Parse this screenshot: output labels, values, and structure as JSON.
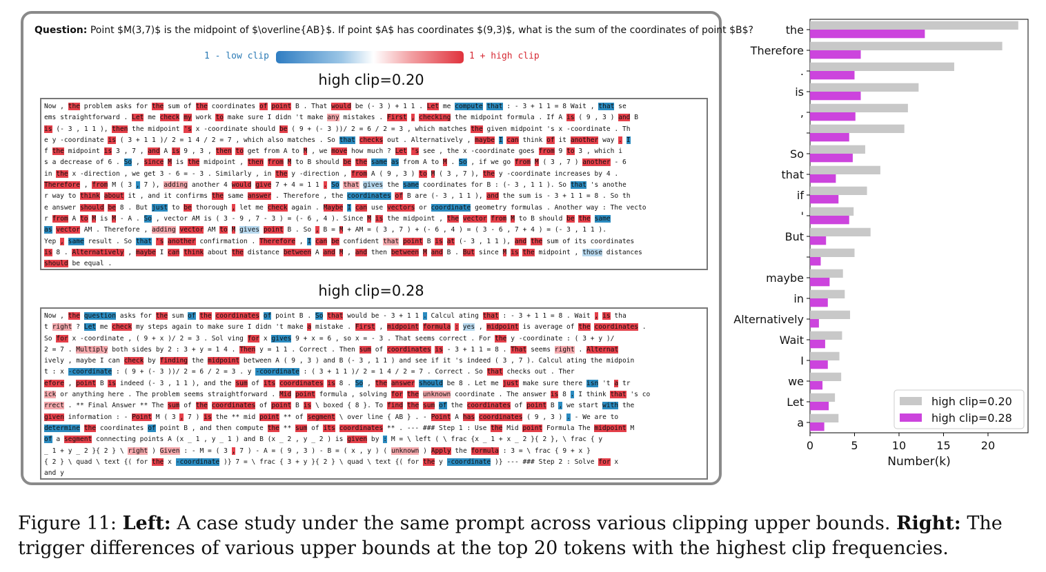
{
  "question": {
    "label": "Question:",
    "text": "Point $M(3,7)$ is the midpoint of $\\overline{AB}$. If point $A$ has coordinates $(9,3)$, what is the sum of the coordinates of point $B$?"
  },
  "scale": {
    "low_label": "1 - low clip",
    "high_label": "1 + high clip",
    "low_color": "#2f7dc2",
    "high_color": "#e0333d"
  },
  "case_a": {
    "title": "high clip=0.20",
    "lines": [
      "Now , the problem asks for the sum of the coordinates of point B . That would be (- 3 ) + 1 1 . Let me compute that : - 3 + 1 1 = 8 Wait , that se",
      "ems straightforward . Let me check my work to make sure I didn 't make any mistakes . First , checking the midpoint formula . If A is ( 9 , 3 ) and B",
      "is (- 3 , 1 1 ), then the midpoint 's x -coordinate should be ( 9 + (- 3 ))/ 2 = 6 / 2 = 3 , which matches the given midpoint 's x -coordinate . Th",
      "e y -coordinate is ( 3 + 1 1 )/ 2 = 1 4 / 2 = 7 , which also matches . So that checks out . Alternatively , maybe I can think of it another way . I",
      "f the midpoint is 3 , 7 , and A is 9 , 3 , then to get from A to M , we move how much ? Let 's see , the x -coordinate goes from 9 to 3 , which i",
      "s a decrease of 6 . So , since M is the midpoint , then from M to B should be the same as from A to M . So , if we go from M ( 3 , 7 ) another - 6",
      "in the x -direction , we get 3 - 6 = - 3 . Similarly , in the y -direction , from A ( 9 , 3 ) to M ( 3 , 7 ), the y -coordinate increases by 4 .",
      "Therefore , from M ( 3 , 7 ), adding another 4 would give 7 + 4 = 1 1 . So that gives the same coordinates for B : (- 3 , 1 1 ). So that 's anothe",
      "r way to think about it , and it confirms the same answer . Therefore , the coordinates of B are (- 3 , 1 1 ), and the sum is - 3 + 1 1 = 8 . So th",
      "e answer should be 8 . But just to be thorough , let me check again . Maybe I can use vectors or coordinate geometry formulas . Another way : The vecto",
      "r from A to M is M - A . So , vector AM is ( 3 - 9 , 7 - 3 ) = (- 6 , 4 ). Since M is the midpoint , the vector from M to B should be the same",
      "as vector AM . Therefore , adding vector AM to M gives point B . So , B = M + AM = ( 3 , 7 ) + (- 6 , 4 ) = ( 3 - 6 , 7 + 4 ) = (- 3 , 1 1 ).",
      "Yep , same result . So that 's another confirmation . Therefore , I can be confident that point B is at (- 3 , 1 1 ), and the sum of its coordinates",
      "is 8 . Alternatively , maybe I can think about the distance between A and M , and then between M and B . But since M is the midpoint , those distances",
      "should be equal ."
    ]
  },
  "case_b": {
    "title": "high clip=0.28",
    "lines": [
      "Now , the question asks for the sum of the coordinates of point B . So that would be - 3 + 1 1 . Calcul ating that : - 3 + 1 1 = 8 . Wait , is tha",
      "t right ? Let me check my steps again to make sure I didn 't make a mistake . First , midpoint formula : yes , midpoint is average of the coordinates .",
      "So for x -coordinate , ( 9 + x )/ 2 = 3 . Sol ving for x gives 9 + x = 6 , so x = - 3 . That seems correct . For the y -coordinate : ( 3 + y )/",
      "2 = 7 . Multiply both sides by 2 : 3 + y = 1 4 . Then y = 1 1 . Correct . Then sum of coordinates is - 3 + 1 1 = 8 . That seems right . Alternat",
      "ively , maybe I can check by finding the midpoint between A ( 9 , 3 ) and B (- 3 , 1 1 ) and see if it 's indeed ( 3 , 7 ). Calcul ating the midpoin",
      "t : x -coordinate : ( 9 + (- 3 ))/ 2 = 6 / 2 = 3 . y -coordinate : ( 3 + 1 1 )/ 2 = 1 4 / 2 = 7 . Correct . So that checks out . Ther",
      "efore , point B is indeed (- 3 , 1 1 ), and the sum of its coordinates is 8 . So , the answer should be 8 . Let me just make sure there isn 't a tr",
      "ick or anything here . The problem seems straightforward . Mid point formula , solving for the unknown coordinate . The answer is 8 . I think that 's co",
      "rrect . ** Final Answer ** The sum of the coordinates of point B is \\ boxed { 8 }. To find the sum of the coordinates of point B , we start with the",
      "given information : - Point M ( 3 , 7 ) is the ** mid point ** of segment \\ over line { AB } . - Point A has coordinates ( 9 , 3 ) . - We are to",
      "determine the coordinates of point B , and then compute the ** sum of its coordinates ** . --- ### Step 1 : Use the Mid point Formula The midpoint M",
      "of a segment connecting points A (x _ 1 , y _ 1 ) and B (x _ 2 , y _ 2 ) is given by : M = \\ left ( \\ frac {x _ 1 + x _ 2 }{ 2 }, \\ frac { y",
      "_ 1 + y _ 2 }{ 2 } \\ right ) Given : - M = ( 3 , 7 ) - A = ( 9 , 3 ) - B = ( x , y ) ( unknown ) Apply the formula : 3 = \\ frac { 9 + x }",
      "{ 2 } \\ quad \\ text {( for the x -coordinate )} 7 = \\ frac { 3 + y }{ 2 } \\ quad \\ text {( for the y -coordinate )} --- ### Step 2 : Solve for x",
      "and y"
    ]
  },
  "chart_data": {
    "type": "bar",
    "orientation": "horizontal",
    "categories": [
      "the",
      "Therefore",
      ".",
      "is",
      ",",
      "",
      "So",
      "that",
      "if",
      "'",
      "But",
      "",
      "maybe",
      "in",
      "Alternatively",
      "Wait",
      "I",
      "we",
      "Let",
      "a"
    ],
    "series": [
      {
        "name": "high clip=0.20",
        "color": "#c8c8c8",
        "values": [
          23.4,
          21.6,
          16.2,
          12.2,
          11.0,
          10.6,
          6.2,
          7.9,
          6.4,
          4.9,
          6.8,
          5.0,
          3.7,
          3.9,
          4.5,
          3.6,
          3.3,
          3.5,
          2.8,
          3.2
        ]
      },
      {
        "name": "high clip=0.28",
        "color": "#cc44dd",
        "values": [
          12.9,
          5.7,
          5.0,
          5.7,
          5.1,
          4.4,
          4.8,
          2.9,
          3.2,
          4.4,
          1.8,
          1.2,
          2.2,
          2.0,
          1.0,
          1.7,
          2.0,
          1.4,
          2.1,
          1.6
        ]
      }
    ],
    "xlabel": "Number(k)",
    "ylabel": "",
    "xlim": [
      0,
      24.5
    ],
    "xticks": [
      0,
      5,
      10,
      15,
      20
    ],
    "grid": false,
    "legend_position": "lower-right"
  },
  "caption": {
    "prefix": "Figure 11:",
    "left_bold": "Left:",
    "left_text": "A case study under the same prompt across various clipping upper bounds.",
    "right_bold": "Right:",
    "right_text": "The trigger differences of various upper bounds at the top 20 tokens with the highest clip frequencies."
  }
}
